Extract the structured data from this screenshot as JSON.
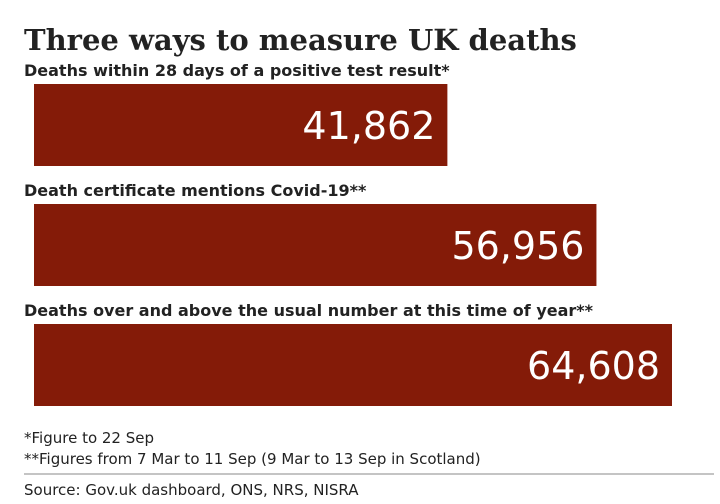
{
  "chart_data": {
    "type": "bar",
    "orientation": "horizontal",
    "title": "Three ways to measure UK deaths",
    "categories": [
      "Deaths within 28 days of a positive test result*",
      "Death certificate mentions Covid-19**",
      "Deaths over and above the usual number at this time of year**"
    ],
    "values": [
      41862,
      56956,
      64608
    ],
    "value_labels": [
      "41,862",
      "56,956",
      "64,608"
    ],
    "color": "#841b08",
    "notes": [
      "*Figure to 22 Sep",
      "**Figures from 7 Mar to 11 Sep (9 Mar to 13 Sep in Scotland)"
    ],
    "source": "Source: Gov.uk dashboard, ONS, NRS, NISRA"
  }
}
